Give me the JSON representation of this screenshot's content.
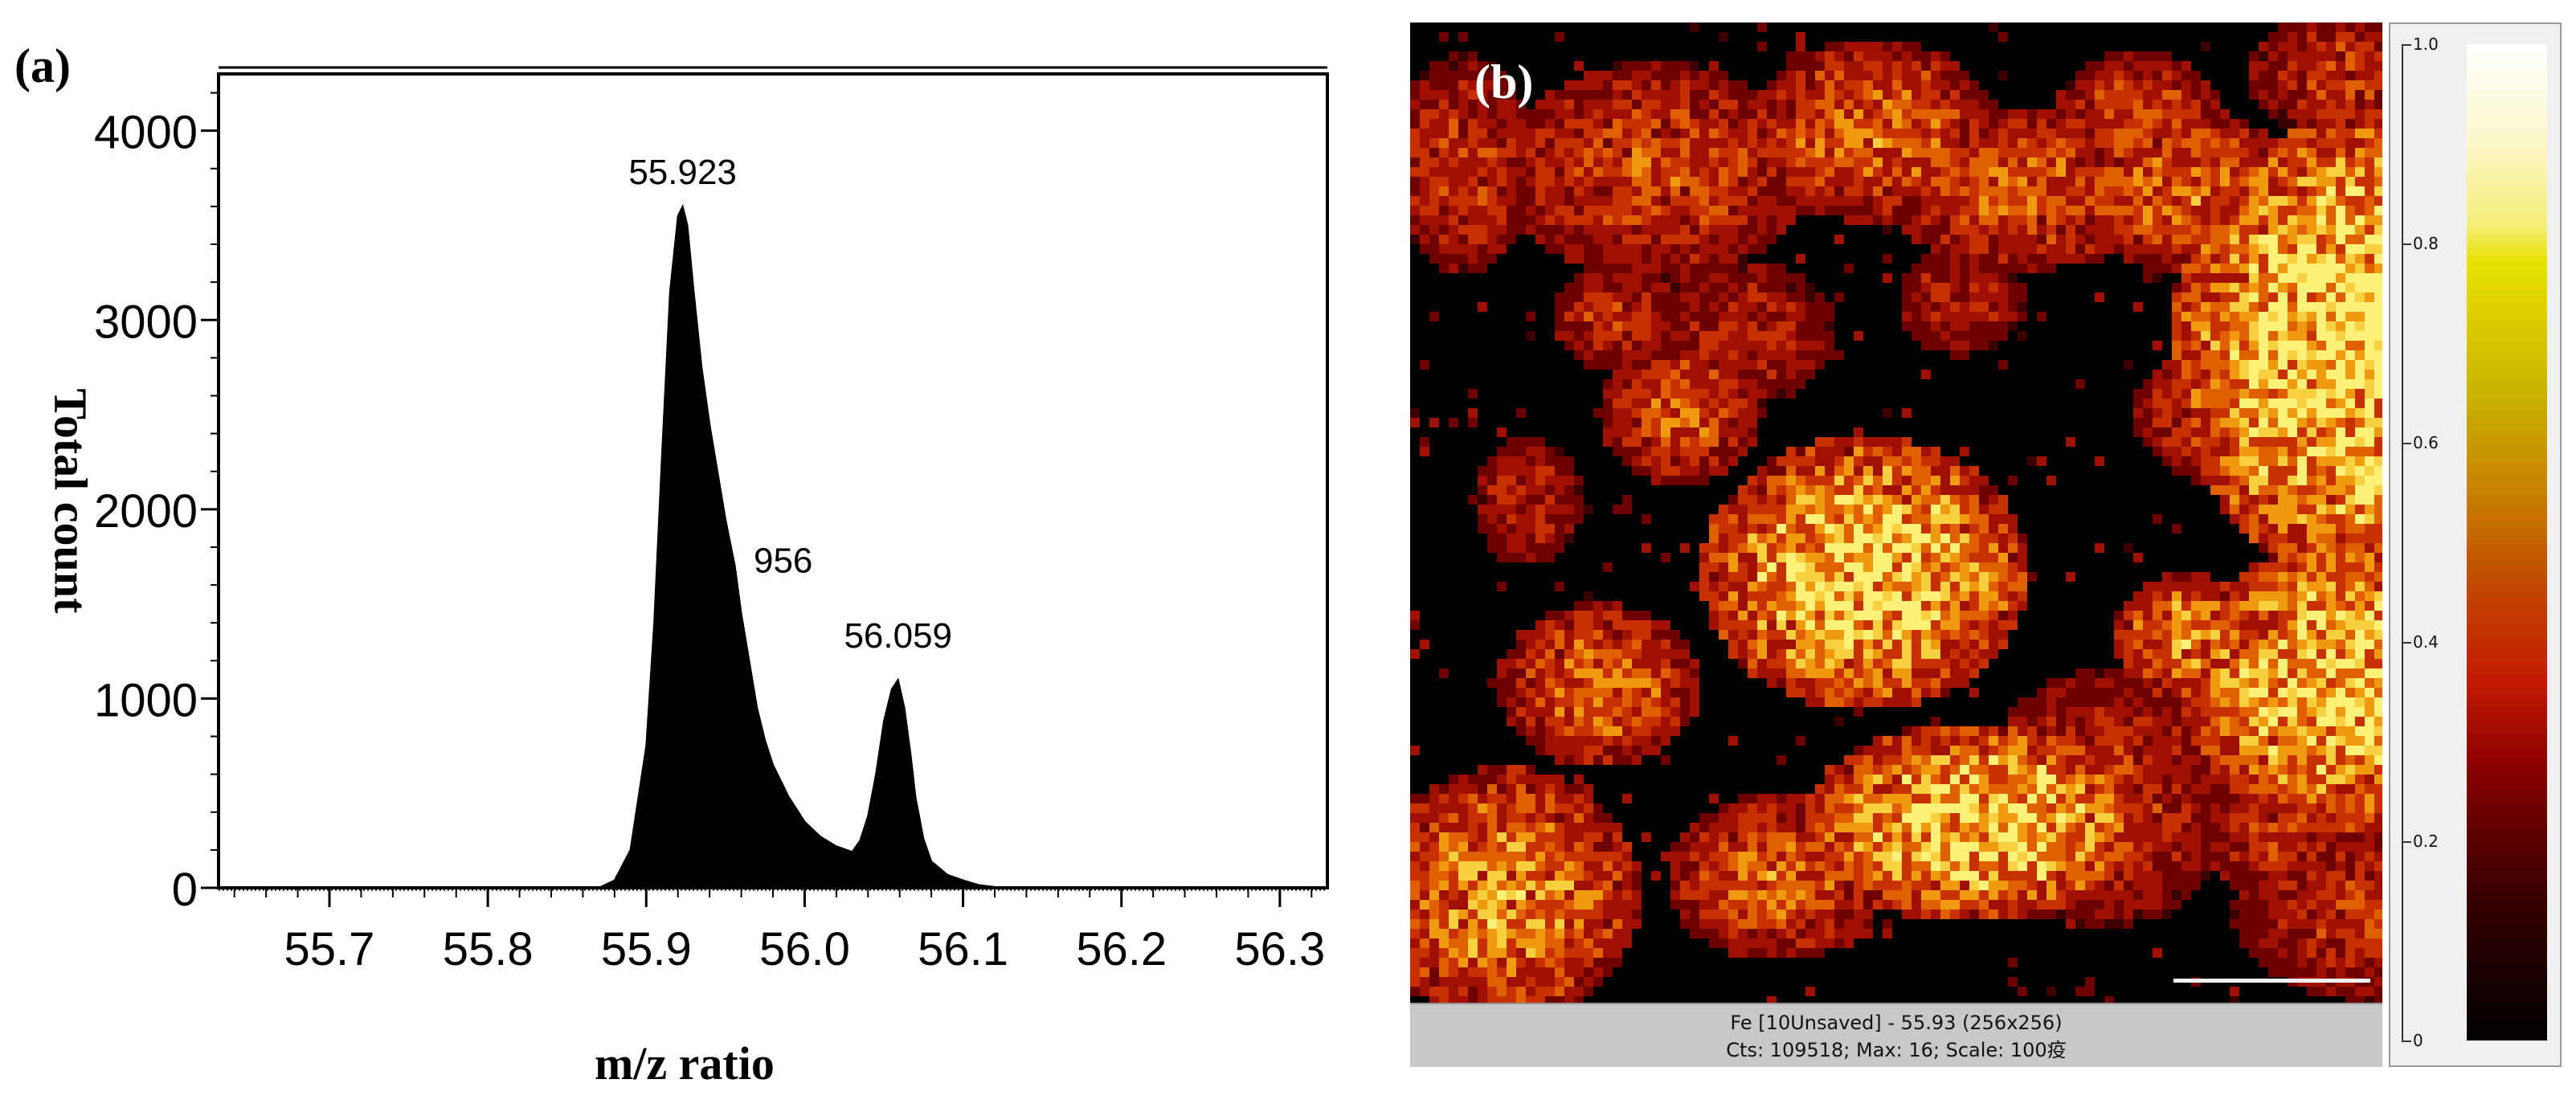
{
  "panel_a": {
    "label": "(a)",
    "chart_data": {
      "type": "area",
      "xlabel": "m/z ratio",
      "ylabel": "Total count",
      "xlim": [
        55.63,
        56.33
      ],
      "ylim": [
        0,
        4300
      ],
      "x_ticks": [
        55.7,
        55.8,
        55.9,
        56.0,
        56.1,
        56.2,
        56.3
      ],
      "x_tick_labels": [
        "55.7",
        "55.8",
        "55.9",
        "56.0",
        "56.1",
        "56.2",
        "56.3"
      ],
      "y_ticks": [
        0,
        1000,
        2000,
        3000,
        4000
      ],
      "y_tick_labels": [
        "0",
        "1000",
        "2000",
        "3000",
        "4000"
      ],
      "x": [
        55.87,
        55.88,
        55.89,
        55.9,
        55.905,
        55.91,
        55.915,
        55.92,
        55.923,
        55.926,
        55.93,
        55.935,
        55.94,
        55.945,
        55.95,
        55.956,
        55.96,
        55.965,
        55.97,
        55.975,
        55.98,
        55.99,
        56.0,
        56.01,
        56.02,
        56.03,
        56.035,
        56.04,
        56.045,
        56.05,
        56.055,
        56.059,
        56.063,
        56.067,
        56.07,
        56.075,
        56.08,
        56.09,
        56.1,
        56.11,
        56.12,
        56.13
      ],
      "y": [
        0,
        40,
        200,
        750,
        1400,
        2300,
        3150,
        3550,
        3600,
        3500,
        3150,
        2750,
        2450,
        2200,
        1950,
        1700,
        1450,
        1200,
        950,
        780,
        650,
        480,
        350,
        270,
        220,
        190,
        250,
        380,
        600,
        880,
        1050,
        1100,
        950,
        700,
        480,
        260,
        140,
        70,
        40,
        15,
        5,
        0
      ],
      "peak_labels": [
        {
          "x": 55.923,
          "y": 3600,
          "text": "55.923"
        },
        {
          "x": 55.956,
          "y": 1700,
          "text": "956"
        },
        {
          "x": 56.059,
          "y": 1100,
          "text": "56.059"
        }
      ],
      "grid": false,
      "fill_color": "#000000"
    }
  },
  "panel_b": {
    "label": "(b)",
    "status_line1": "Fe [10Unsaved] -  55.93 (256x256)",
    "status_line2": "Cts: 109518; Max: 16; Scale: 100疫",
    "colorbar": {
      "ticks": [
        0,
        0.2,
        0.4,
        0.6,
        0.8,
        1.0
      ],
      "tick_labels": [
        "0",
        "0.2",
        "0.4",
        "0.6",
        "0.8",
        "1.0"
      ]
    }
  }
}
